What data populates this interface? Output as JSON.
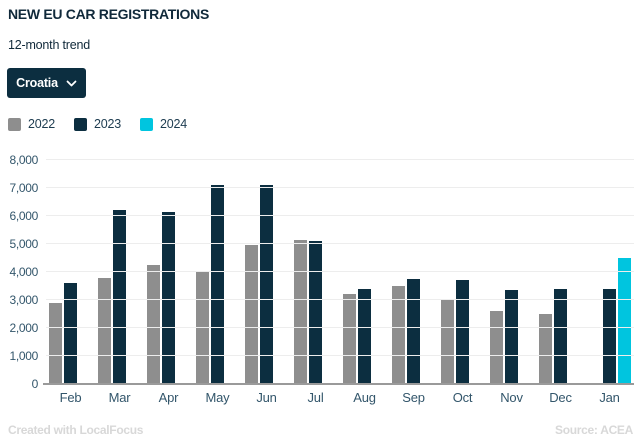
{
  "header": {
    "title": "NEW EU CAR REGISTRATIONS",
    "subtitle": "12-month trend",
    "country_selector": {
      "label": "Croatia"
    }
  },
  "chart_data": {
    "type": "bar",
    "title": "NEW EU CAR REGISTRATIONS",
    "subtitle": "12-month trend",
    "categories": [
      "Feb",
      "Mar",
      "Apr",
      "May",
      "Jun",
      "Jul",
      "Aug",
      "Sep",
      "Oct",
      "Nov",
      "Dec",
      "Jan"
    ],
    "series": [
      {
        "name": "2022",
        "color": "#8e8e8e",
        "values": [
          2900,
          3800,
          4250,
          4050,
          4950,
          5150,
          3200,
          3500,
          3000,
          2600,
          2500,
          null
        ]
      },
      {
        "name": "2023",
        "color": "#0c2e40",
        "values": [
          3600,
          6200,
          6150,
          7100,
          7100,
          5100,
          3400,
          3750,
          3700,
          3350,
          3400,
          3400
        ]
      },
      {
        "name": "2024",
        "color": "#00c5df",
        "values": [
          null,
          null,
          null,
          null,
          null,
          null,
          null,
          null,
          null,
          null,
          null,
          4500
        ]
      }
    ],
    "ylim": [
      0,
      8000
    ],
    "yticks": [
      {
        "v": 0,
        "label": "0"
      },
      {
        "v": 1000,
        "label": "1,000"
      },
      {
        "v": 2000,
        "label": "2,000"
      },
      {
        "v": 3000,
        "label": "3,000"
      },
      {
        "v": 4000,
        "label": "4,000"
      },
      {
        "v": 5000,
        "label": "5,000"
      },
      {
        "v": 6000,
        "label": "6,000"
      },
      {
        "v": 7000,
        "label": "7,000"
      },
      {
        "v": 8000,
        "label": "8,000"
      }
    ],
    "grid": true,
    "legend_position": "top",
    "xlabel": "",
    "ylabel": ""
  },
  "footer": {
    "left": "Created with LocalFocus",
    "right": "Source: ACEA"
  },
  "colors": {
    "accent_navy": "#0c2e40",
    "bar_gray": "#8e8e8e",
    "bar_cyan": "#00c5df",
    "axis_text": "#33566b",
    "gridline": "#ededed",
    "baseline": "#9a9a9a",
    "footer_text": "#d8d8d8"
  }
}
